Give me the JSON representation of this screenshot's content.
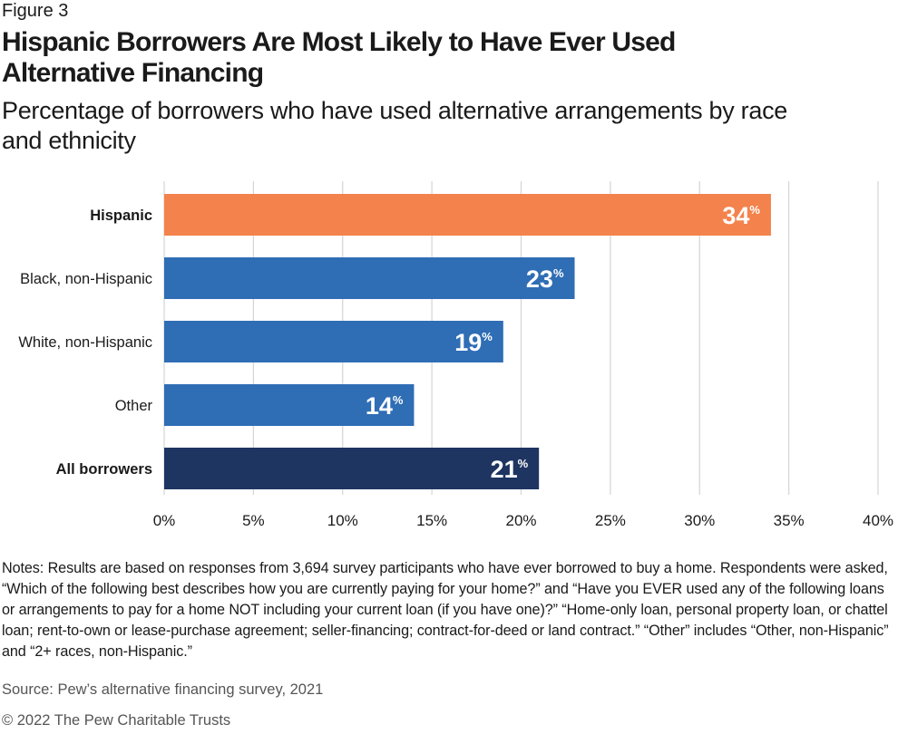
{
  "figure_label": "Figure 3",
  "title": "Hispanic Borrowers Are Most Likely to Have Ever Used Alternative Financing",
  "subtitle": "Percentage of borrowers who have used alternative arrangements by race and ethnicity",
  "chart_data": {
    "type": "bar",
    "orientation": "horizontal",
    "categories": [
      "Hispanic",
      "Black, non-Hispanic",
      "White, non-Hispanic",
      "Other",
      "All borrowers"
    ],
    "values": [
      34,
      23,
      19,
      14,
      21
    ],
    "data_labels": [
      "34",
      "23",
      "19",
      "14",
      "21"
    ],
    "label_suffix": "%",
    "bold_categories": [
      "Hispanic",
      "All borrowers"
    ],
    "colors": [
      "#F4824C",
      "#2F6DB5",
      "#2F6DB5",
      "#2F6DB5",
      "#1E3461"
    ],
    "xlim": [
      0,
      40
    ],
    "xticks": [
      0,
      5,
      10,
      15,
      20,
      25,
      30,
      35,
      40
    ],
    "xtick_labels": [
      "0%",
      "5%",
      "10%",
      "15%",
      "20%",
      "25%",
      "30%",
      "35%",
      "40%"
    ],
    "grid": "vertical",
    "xlabel": "",
    "ylabel": ""
  },
  "notes": "Notes: Results are based on responses from 3,694 survey participants who have ever borrowed to buy a home. Respondents were asked, “Which of the following best describes how you are currently paying for your home?” and “Have you EVER used any of the following loans or arrangements to pay for a home NOT including your current loan (if you have one)?” “Home-only loan, personal property loan, or chattel loan; rent-to-own or lease-purchase agreement; seller-financing; contract-for-deed or land contract.” “Other” includes “Other, non-Hispanic” and “2+ races, non-Hispanic.”",
  "source": "Source: Pew’s alternative financing survey, 2021",
  "copyright": "© 2022 The Pew Charitable Trusts"
}
